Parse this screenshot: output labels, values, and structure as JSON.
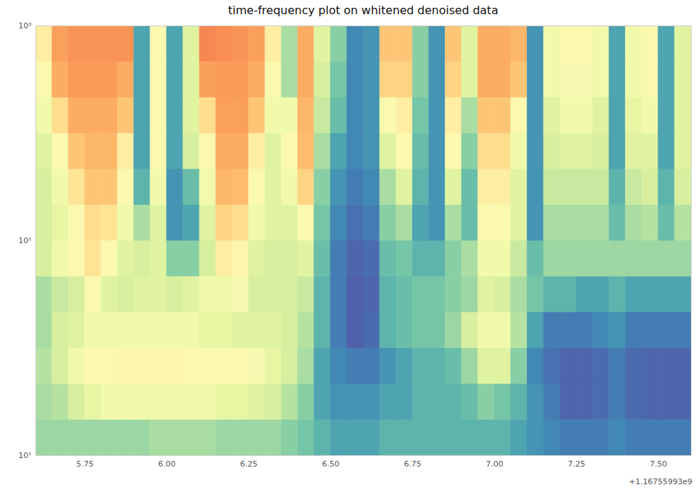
{
  "chart_data": {
    "type": "heatmap",
    "title": "time-frequency plot on whitened denoised data",
    "x_offset": "+1.16755993e9",
    "log": "y",
    "color": "spectral",
    "xlim": [
      5.6,
      7.6
    ],
    "ylim": [
      10,
      1000
    ],
    "zlim": [
      0,
      1
    ],
    "xticks": [
      5.75,
      {
        "value": 6,
        "label": "6.00"
      },
      6.25,
      {
        "value": 6.5,
        "label": "6.50"
      },
      6.75,
      {
        "value": 7,
        "label": "7.00"
      },
      7.25,
      {
        "value": 7.5,
        "label": "7.50"
      }
    ],
    "yticks": [
      {
        "value": 10,
        "label": "10¹"
      },
      {
        "value": 100,
        "label": "10²"
      },
      {
        "value": 1000,
        "label": "10³"
      }
    ],
    "x_edges": [
      5.6,
      5.65,
      5.7,
      5.75,
      5.8,
      5.85,
      5.9,
      5.95,
      6.0,
      6.05,
      6.1,
      6.15,
      6.2,
      6.25,
      6.3,
      6.35,
      6.4,
      6.45,
      6.5,
      6.55,
      6.6,
      6.65,
      6.7,
      6.75,
      6.8,
      6.85,
      6.9,
      6.95,
      7.0,
      7.05,
      7.1,
      7.15,
      7.2,
      7.25,
      7.3,
      7.35,
      7.4,
      7.45,
      7.5,
      7.55,
      7.6
    ],
    "y_edges": [
      10,
      14.68,
      21.54,
      31.62,
      46.42,
      68.13,
      100,
      146.8,
      215.4,
      316.2,
      464.2,
      681.3,
      1000
    ],
    "cells": [
      [
        0.72,
        0.72,
        0.72,
        0.72,
        0.72,
        0.72,
        0.72,
        0.7,
        0.7,
        0.7,
        0.7,
        0.72,
        0.72,
        0.72,
        0.72,
        0.75,
        0.78,
        0.82,
        0.85,
        0.85,
        0.85,
        0.82,
        0.82,
        0.82,
        0.82,
        0.82,
        0.82,
        0.82,
        0.82,
        0.85,
        0.88,
        0.9,
        0.92,
        0.92,
        0.92,
        0.9,
        0.92,
        0.92,
        0.92,
        0.92
      ],
      [
        0.7,
        0.68,
        0.62,
        0.58,
        0.55,
        0.55,
        0.55,
        0.55,
        0.55,
        0.55,
        0.55,
        0.58,
        0.58,
        0.6,
        0.62,
        0.68,
        0.75,
        0.85,
        0.88,
        0.88,
        0.88,
        0.85,
        0.85,
        0.82,
        0.82,
        0.82,
        0.8,
        0.75,
        0.78,
        0.82,
        0.88,
        0.92,
        0.96,
        0.96,
        0.95,
        0.92,
        0.95,
        0.96,
        0.96,
        0.96
      ],
      [
        0.68,
        0.62,
        0.55,
        0.5,
        0.5,
        0.48,
        0.48,
        0.48,
        0.48,
        0.5,
        0.5,
        0.5,
        0.5,
        0.52,
        0.58,
        0.62,
        0.7,
        0.85,
        0.9,
        0.92,
        0.92,
        0.88,
        0.85,
        0.82,
        0.82,
        0.8,
        0.72,
        0.6,
        0.6,
        0.75,
        0.9,
        0.94,
        0.96,
        0.96,
        0.95,
        0.92,
        0.95,
        0.96,
        0.96,
        0.96
      ],
      [
        0.7,
        0.62,
        0.6,
        0.55,
        0.55,
        0.55,
        0.55,
        0.55,
        0.55,
        0.55,
        0.58,
        0.58,
        0.6,
        0.6,
        0.6,
        0.62,
        0.68,
        0.82,
        0.92,
        0.97,
        0.95,
        0.82,
        0.8,
        0.78,
        0.78,
        0.72,
        0.62,
        0.55,
        0.55,
        0.68,
        0.85,
        0.92,
        0.92,
        0.92,
        0.9,
        0.88,
        0.92,
        0.92,
        0.92,
        0.92
      ],
      [
        0.7,
        0.65,
        0.62,
        0.5,
        0.6,
        0.62,
        0.6,
        0.6,
        0.62,
        0.6,
        0.55,
        0.55,
        0.52,
        0.62,
        0.62,
        0.62,
        0.65,
        0.82,
        0.92,
        0.97,
        0.96,
        0.82,
        0.8,
        0.78,
        0.78,
        0.75,
        0.72,
        0.6,
        0.62,
        0.7,
        0.78,
        0.82,
        0.82,
        0.85,
        0.85,
        0.82,
        0.85,
        0.85,
        0.85,
        0.85
      ],
      [
        0.62,
        0.55,
        0.5,
        0.42,
        0.5,
        0.6,
        0.62,
        0.6,
        0.75,
        0.75,
        0.62,
        0.45,
        0.48,
        0.6,
        0.62,
        0.62,
        0.6,
        0.8,
        0.92,
        0.96,
        0.95,
        0.8,
        0.78,
        0.82,
        0.82,
        0.75,
        0.7,
        0.55,
        0.55,
        0.65,
        0.8,
        0.72,
        0.72,
        0.72,
        0.72,
        0.72,
        0.72,
        0.72,
        0.72,
        0.72
      ],
      [
        0.62,
        0.58,
        0.5,
        0.4,
        0.42,
        0.55,
        0.7,
        0.6,
        0.88,
        0.85,
        0.6,
        0.38,
        0.4,
        0.55,
        0.6,
        0.6,
        0.5,
        0.78,
        0.9,
        0.94,
        0.92,
        0.75,
        0.7,
        0.85,
        0.88,
        0.7,
        0.8,
        0.5,
        0.5,
        0.6,
        0.88,
        0.7,
        0.7,
        0.7,
        0.7,
        0.8,
        0.7,
        0.68,
        0.8,
        0.68
      ],
      [
        0.62,
        0.55,
        0.42,
        0.35,
        0.35,
        0.5,
        0.82,
        0.55,
        0.88,
        0.8,
        0.55,
        0.32,
        0.33,
        0.5,
        0.6,
        0.55,
        0.38,
        0.75,
        0.88,
        0.92,
        0.9,
        0.7,
        0.6,
        0.82,
        0.88,
        0.6,
        0.8,
        0.45,
        0.45,
        0.6,
        0.88,
        0.65,
        0.65,
        0.65,
        0.65,
        0.82,
        0.65,
        0.62,
        0.82,
        0.62
      ],
      [
        0.6,
        0.5,
        0.35,
        0.32,
        0.32,
        0.45,
        0.85,
        0.5,
        0.85,
        0.62,
        0.5,
        0.3,
        0.3,
        0.45,
        0.6,
        0.5,
        0.33,
        0.7,
        0.85,
        0.9,
        0.88,
        0.6,
        0.5,
        0.8,
        0.88,
        0.5,
        0.75,
        0.4,
        0.4,
        0.55,
        0.88,
        0.62,
        0.6,
        0.6,
        0.62,
        0.85,
        0.6,
        0.6,
        0.85,
        0.6
      ],
      [
        0.55,
        0.4,
        0.3,
        0.3,
        0.3,
        0.35,
        0.85,
        0.5,
        0.85,
        0.6,
        0.4,
        0.28,
        0.28,
        0.35,
        0.55,
        0.55,
        0.32,
        0.65,
        0.8,
        0.9,
        0.88,
        0.5,
        0.45,
        0.78,
        0.88,
        0.45,
        0.7,
        0.35,
        0.35,
        0.5,
        0.88,
        0.6,
        0.55,
        0.55,
        0.6,
        0.85,
        0.58,
        0.55,
        0.85,
        0.6
      ],
      [
        0.5,
        0.3,
        0.27,
        0.27,
        0.27,
        0.3,
        0.85,
        0.5,
        0.85,
        0.6,
        0.28,
        0.27,
        0.27,
        0.3,
        0.5,
        0.7,
        0.3,
        0.62,
        0.78,
        0.9,
        0.88,
        0.38,
        0.38,
        0.75,
        0.88,
        0.38,
        0.6,
        0.3,
        0.3,
        0.35,
        0.88,
        0.55,
        0.52,
        0.52,
        0.55,
        0.85,
        0.55,
        0.5,
        0.85,
        0.6
      ],
      [
        0.45,
        0.28,
        0.26,
        0.26,
        0.26,
        0.26,
        0.85,
        0.5,
        0.85,
        0.6,
        0.24,
        0.25,
        0.26,
        0.28,
        0.45,
        0.7,
        0.3,
        0.6,
        0.75,
        0.9,
        0.88,
        0.35,
        0.35,
        0.75,
        0.88,
        0.35,
        0.6,
        0.3,
        0.3,
        0.32,
        0.88,
        0.55,
        0.5,
        0.5,
        0.55,
        0.85,
        0.55,
        0.5,
        0.85,
        0.6
      ]
    ]
  }
}
